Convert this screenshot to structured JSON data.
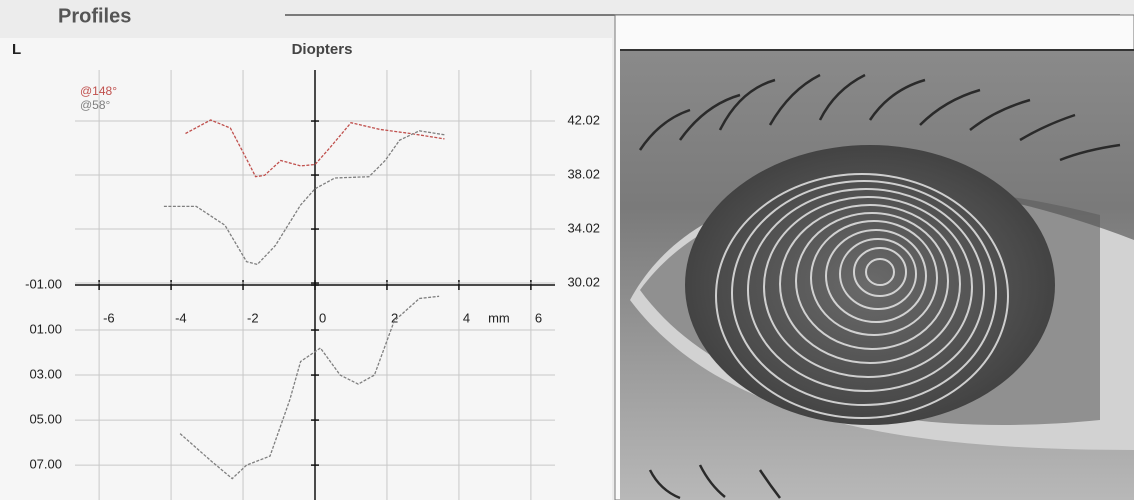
{
  "header": {
    "title": "Profiles"
  },
  "chart_data": {
    "type": "line",
    "eye": "L",
    "title": "Diopters",
    "x_label": "mm",
    "xlim": [
      -6.67,
      6.67
    ],
    "xticks": [
      -6,
      -4,
      -2,
      0,
      2,
      4,
      6
    ],
    "ylim": [
      8.55,
      -10.55
    ],
    "yticks": [
      {
        "value": -1,
        "label": "-01.00"
      },
      {
        "value": 1,
        "label": "01.00"
      },
      {
        "value": 3,
        "label": "03.00"
      },
      {
        "value": 5,
        "label": "05.00"
      },
      {
        "value": 7,
        "label": "07.00"
      }
    ],
    "y2lim": [
      13.95,
      45.8
    ],
    "y2ticks": [
      30.02,
      34.02,
      38.02,
      42.02
    ],
    "grid": true,
    "legend": "top-left",
    "series": [
      {
        "name": "@148°",
        "color": "#c0504d",
        "axis": "y2",
        "x": [
          -3.6,
          -2.9,
          -2.35,
          -1.9,
          -1.65,
          -1.4,
          -0.95,
          -0.4,
          0,
          0.4,
          1.0,
          1.8,
          2.65,
          3.6
        ],
        "values": [
          41.1,
          42.1,
          41.5,
          39.2,
          37.9,
          38.0,
          39.1,
          38.7,
          38.8,
          40.0,
          41.9,
          41.4,
          41.1,
          40.7
        ]
      },
      {
        "name": "@58°",
        "color": "#7f7f7f",
        "axis": "y2",
        "x": [
          -4.2,
          -3.3,
          -2.5,
          -1.9,
          -1.6,
          -1.1,
          -0.4,
          0,
          0.55,
          1.5,
          1.95,
          2.35,
          2.9,
          3.6
        ],
        "values": [
          35.7,
          35.7,
          34.3,
          31.6,
          31.4,
          32.8,
          35.8,
          37.0,
          37.8,
          37.9,
          39.1,
          40.6,
          41.3,
          41.0
        ]
      },
      {
        "color": "#7f7f7f",
        "axis": "y",
        "x": [
          -3.75,
          -2.9,
          -2.3,
          -1.9,
          -1.25,
          -0.7,
          -0.4,
          0.15,
          0.7,
          1.2,
          1.65,
          2.2,
          2.9,
          3.45
        ],
        "values": [
          5.6,
          6.8,
          7.6,
          7.0,
          6.6,
          4.1,
          2.4,
          1.8,
          3.0,
          3.4,
          3.0,
          0.6,
          -0.4,
          -0.5
        ]
      }
    ]
  }
}
